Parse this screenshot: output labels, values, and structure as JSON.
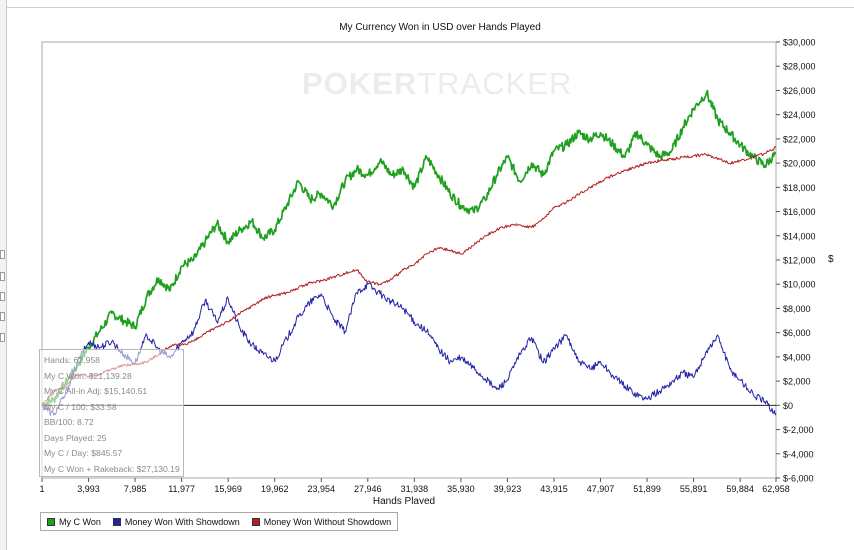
{
  "chart_data": {
    "type": "line",
    "title": "My Currency Won in USD over Hands Played",
    "xlabel": "Hands Played",
    "ylabel": "$",
    "xlim": [
      1,
      62958
    ],
    "ylim": [
      -6000,
      30000
    ],
    "x_ticks": [
      "1",
      "3,993",
      "7,985",
      "11,977",
      "15,969",
      "19,962",
      "23,954",
      "27,946",
      "31,938",
      "35,930",
      "39,923",
      "43,915",
      "47,907",
      "51,899",
      "55,891",
      "59,884",
      "62,958"
    ],
    "y_ticks": [
      "$30,000",
      "$28,000",
      "$26,000",
      "$24,000",
      "$22,000",
      "$20,000",
      "$18,000",
      "$16,000",
      "$14,000",
      "$12,000",
      "$10,000",
      "$8,000",
      "$6,000",
      "$4,000",
      "$2,000",
      "$0",
      "$-2,000",
      "$-4,000",
      "$-6,000"
    ],
    "grid": false,
    "legend_position": "bottom-left",
    "series": [
      {
        "name": "My C Won",
        "color": "#1fa01f",
        "x": [
          1,
          1000,
          2000,
          3000,
          3993,
          5000,
          6000,
          7000,
          7985,
          9000,
          10000,
          11000,
          11977,
          13000,
          14000,
          15000,
          15969,
          17000,
          18000,
          19000,
          19962,
          21000,
          22000,
          23000,
          23954,
          25000,
          26000,
          27000,
          27946,
          29000,
          30000,
          31000,
          31938,
          33000,
          34000,
          35000,
          35930,
          37000,
          38000,
          39000,
          39923,
          41000,
          42000,
          43000,
          43915,
          45000,
          46000,
          47000,
          47907,
          49000,
          50000,
          51000,
          51899,
          53000,
          54000,
          55000,
          55891,
          57000,
          58000,
          59000,
          59884,
          61000,
          62000,
          62958
        ],
        "y": [
          0,
          500,
          1800,
          3200,
          4800,
          6200,
          7600,
          7000,
          6500,
          9000,
          10500,
          9500,
          11500,
          12000,
          13500,
          15000,
          13500,
          14500,
          15200,
          13800,
          14500,
          16500,
          18500,
          17000,
          17500,
          16500,
          18500,
          19500,
          19000,
          20200,
          19000,
          19500,
          18000,
          20500,
          19000,
          17500,
          16500,
          16000,
          17000,
          19000,
          20500,
          18500,
          20000,
          19000,
          21000,
          21500,
          22500,
          22000,
          22500,
          21500,
          20500,
          22500,
          21500,
          20500,
          21000,
          23000,
          24500,
          25800,
          23500,
          22500,
          21500,
          20500,
          19800,
          20800
        ]
      },
      {
        "name": "Money Won With Showdown",
        "color": "#2323a8",
        "x": [
          1,
          1000,
          2000,
          3000,
          3993,
          5000,
          6000,
          7000,
          7985,
          9000,
          10000,
          11000,
          11977,
          13000,
          14000,
          15000,
          15969,
          17000,
          18000,
          19000,
          19962,
          21000,
          22000,
          23000,
          23954,
          25000,
          26000,
          27000,
          27946,
          29000,
          30000,
          31000,
          31938,
          33000,
          34000,
          35000,
          35930,
          37000,
          38000,
          39000,
          39923,
          41000,
          42000,
          43000,
          43915,
          45000,
          46000,
          47000,
          47907,
          49000,
          50000,
          51000,
          51899,
          53000,
          54000,
          55000,
          55891,
          57000,
          58000,
          59000,
          59884,
          61000,
          62000,
          62958
        ],
        "y": [
          0,
          -800,
          900,
          3500,
          5200,
          4800,
          5300,
          4200,
          3500,
          5800,
          4600,
          3900,
          5200,
          6100,
          8700,
          6900,
          8800,
          6300,
          5000,
          4200,
          3700,
          5500,
          7300,
          8500,
          9200,
          7100,
          6100,
          9300,
          10000,
          9200,
          8500,
          8000,
          6900,
          6100,
          4700,
          3600,
          3900,
          3100,
          2200,
          1300,
          2100,
          4200,
          5600,
          3500,
          4700,
          5800,
          3600,
          3000,
          3600,
          2400,
          1600,
          900,
          500,
          1200,
          1900,
          2700,
          2300,
          4500,
          5700,
          3000,
          2100,
          900,
          300,
          -700
        ]
      },
      {
        "name": "Money Won Without Showdown",
        "color": "#b32020",
        "x": [
          1,
          1000,
          2000,
          3000,
          3993,
          5000,
          6000,
          7000,
          7985,
          9000,
          10000,
          11000,
          11977,
          13000,
          14000,
          15000,
          15969,
          17000,
          18000,
          19000,
          19962,
          21000,
          22000,
          23000,
          23954,
          25000,
          26000,
          27000,
          27946,
          29000,
          30000,
          31000,
          31938,
          33000,
          34000,
          35000,
          35930,
          37000,
          38000,
          39000,
          39923,
          41000,
          42000,
          43000,
          43915,
          45000,
          46000,
          47000,
          47907,
          49000,
          50000,
          51000,
          51899,
          53000,
          54000,
          55000,
          55891,
          57000,
          58000,
          59000,
          59884,
          61000,
          62000,
          62958
        ],
        "y": [
          0,
          1200,
          1500,
          2600,
          2400,
          2600,
          3000,
          3300,
          3400,
          3600,
          4200,
          4900,
          5000,
          5300,
          5900,
          6500,
          6900,
          7600,
          8200,
          8800,
          9100,
          9300,
          9700,
          10100,
          10300,
          10600,
          10900,
          11200,
          10200,
          10000,
          10400,
          11200,
          11600,
          12500,
          13000,
          12800,
          12500,
          13200,
          14000,
          14500,
          14800,
          14900,
          14700,
          15400,
          16300,
          16800,
          17400,
          18000,
          18500,
          19000,
          19400,
          19700,
          20000,
          20200,
          20300,
          20500,
          20600,
          20700,
          20400,
          20000,
          20200,
          20500,
          20800,
          21300
        ]
      }
    ]
  },
  "watermark": {
    "bold": "POKER",
    "light": "TRACKER"
  },
  "stats_box": {
    "lines": [
      "Hands: 62,958",
      "My C Won: $21,139.28",
      "My C All-in Adj: $15,140.51",
      "My C / 100: $33.58",
      "BB/100: 8.72",
      "Days Played: 25",
      "My C / Day: $845.57",
      "My C Won + Rakeback: $27,130.19"
    ]
  },
  "legend": [
    {
      "label": "My C Won",
      "color": "#1fa01f"
    },
    {
      "label": "Money Won With Showdown",
      "color": "#2323a8"
    },
    {
      "label": "Money Won Without Showdown",
      "color": "#b32020"
    }
  ]
}
